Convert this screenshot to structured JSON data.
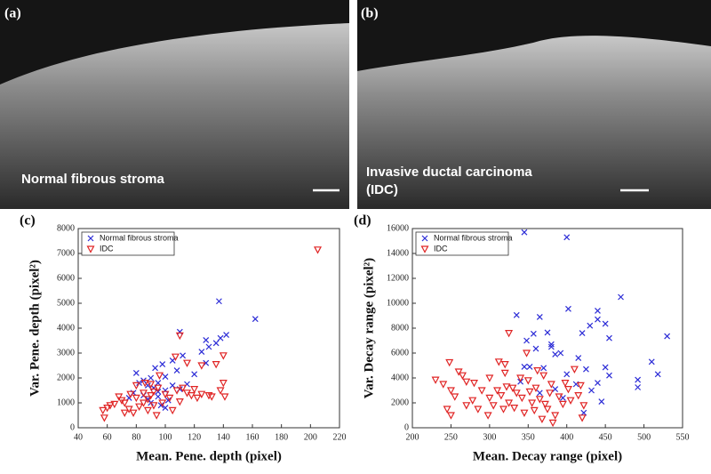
{
  "images": [
    {
      "label": "(a)",
      "caption": [
        "Normal fibrous stroma"
      ]
    },
    {
      "label": "(b)",
      "caption": [
        "Invasive ductal carcinoma",
        "(IDC)"
      ]
    }
  ],
  "chart_data": [
    {
      "type": "scatter",
      "label": "(c)",
      "x_label": "Mean. Pene. depth (pixel)",
      "y_label": "Var. Pene. depth (pixel²)",
      "xlim": [
        40,
        220
      ],
      "xticks": [
        40,
        60,
        80,
        100,
        120,
        140,
        160,
        180,
        200,
        220
      ],
      "ylim": [
        0,
        8000
      ],
      "yticks": [
        0,
        1000,
        2000,
        3000,
        4000,
        5000,
        6000,
        7000,
        8000
      ],
      "grid": false,
      "legend": "upper-left",
      "series": [
        {
          "name": "Normal fibrous stroma",
          "color": "#2b2bd6",
          "marker": "x",
          "x": [
            137,
            162,
            110,
            142,
            128,
            135,
            138,
            130,
            125,
            112,
            105,
            128,
            98,
            80,
            90,
            100,
            85,
            95,
            88,
            92,
            100,
            78,
            85,
            95,
            102,
            90,
            97,
            82,
            105,
            115,
            108,
            120,
            93,
            75,
            88,
            100,
            95,
            110
          ],
          "values": [
            5080,
            4370,
            3850,
            3730,
            3520,
            3400,
            3600,
            3250,
            3050,
            2900,
            2700,
            2600,
            2550,
            2200,
            2000,
            2050,
            1900,
            1800,
            1700,
            1600,
            1500,
            1400,
            1300,
            1250,
            1100,
            1000,
            900,
            1800,
            1700,
            1750,
            2300,
            2150,
            2400,
            1200,
            1150,
            800,
            1450,
            1550
          ]
        },
        {
          "name": "IDC",
          "color": "#e02424",
          "marker": "triangle-down",
          "x": [
            205,
            110,
            140,
            140,
            135,
            125,
            115,
            107,
            96,
            80,
            70,
            65,
            60,
            57,
            58,
            62,
            68,
            72,
            75,
            78,
            82,
            85,
            88,
            90,
            92,
            95,
            100,
            103,
            108,
            112,
            115,
            118,
            122,
            125,
            130,
            132,
            138,
            141,
            80,
            85,
            88,
            92,
            98,
            72,
            76,
            86,
            90,
            94,
            105,
            110,
            120
          ],
          "values": [
            7150,
            3700,
            2900,
            1800,
            2550,
            2500,
            2600,
            2850,
            2100,
            1700,
            1100,
            950,
            800,
            700,
            400,
            900,
            1250,
            1000,
            750,
            600,
            850,
            1000,
            1150,
            1300,
            1450,
            1600,
            1350,
            1200,
            1500,
            1600,
            1400,
            1300,
            1200,
            1350,
            1300,
            1250,
            1500,
            1250,
            1200,
            1400,
            700,
            900,
            1000,
            600,
            1350,
            1800,
            1750,
            500,
            700,
            1050,
            1550
          ]
        }
      ]
    },
    {
      "type": "scatter",
      "label": "(d)",
      "x_label": "Mean. Decay range (pixel)",
      "y_label": "Var. Decay range (pixel²)",
      "xlim": [
        200,
        550
      ],
      "xticks": [
        200,
        250,
        300,
        350,
        400,
        450,
        500,
        550
      ],
      "ylim": [
        0,
        16000
      ],
      "yticks": [
        0,
        2000,
        4000,
        6000,
        8000,
        10000,
        12000,
        14000,
        16000
      ],
      "grid": false,
      "legend": "upper-left",
      "series": [
        {
          "name": "Normal fibrous stroma",
          "color": "#2b2bd6",
          "marker": "x",
          "x": [
            345,
            400,
            470,
            530,
            335,
            402,
            365,
            440,
            440,
            450,
            430,
            357,
            375,
            455,
            420,
            348,
            380,
            392,
            415,
            385,
            360,
            510,
            518,
            492,
            492,
            450,
            440,
            425,
            400,
            370,
            345,
            340,
            385,
            412,
            432,
            445,
            422,
            365,
            395,
            352,
            380,
            455
          ],
          "values": [
            15700,
            15300,
            10500,
            7350,
            9050,
            9550,
            8900,
            9400,
            8700,
            8350,
            8200,
            7550,
            7650,
            7200,
            7600,
            7000,
            6700,
            6000,
            5600,
            5900,
            6350,
            5300,
            4300,
            3850,
            3250,
            4850,
            3600,
            4700,
            4300,
            4800,
            4900,
            3700,
            3100,
            3500,
            3000,
            2100,
            1200,
            2800,
            2400,
            4900,
            6500,
            4200
          ]
        },
        {
          "name": "IDC",
          "color": "#e02424",
          "marker": "triangle-down",
          "x": [
            325,
            348,
            248,
            320,
            230,
            240,
            250,
            255,
            265,
            270,
            278,
            285,
            245,
            250,
            260,
            270,
            280,
            290,
            300,
            300,
            305,
            310,
            312,
            315,
            320,
            322,
            325,
            330,
            332,
            335,
            340,
            342,
            345,
            350,
            352,
            355,
            358,
            360,
            362,
            365,
            368,
            370,
            372,
            375,
            378,
            380,
            382,
            385,
            390,
            395,
            398,
            402,
            405,
            410,
            415,
            418,
            420,
            422,
            298,
            318
          ],
          "values": [
            7600,
            6000,
            5250,
            5100,
            3850,
            3500,
            3000,
            2500,
            4200,
            3700,
            2200,
            1500,
            1500,
            1000,
            4500,
            1800,
            3600,
            3000,
            2400,
            4000,
            1800,
            3000,
            5300,
            2600,
            4400,
            3300,
            2000,
            3200,
            1600,
            2800,
            4000,
            2400,
            1200,
            3800,
            2900,
            2000,
            1400,
            3200,
            4600,
            2300,
            700,
            4200,
            1900,
            1500,
            2800,
            3500,
            400,
            1000,
            2500,
            1900,
            3600,
            3100,
            2200,
            4700,
            2600,
            3400,
            800,
            1800,
            1000,
            1500
          ]
        }
      ]
    }
  ]
}
